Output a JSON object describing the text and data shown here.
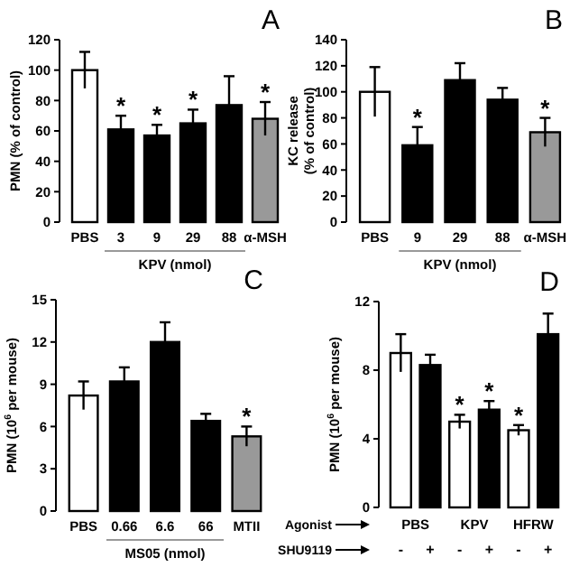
{
  "chart_data": [
    {
      "type": "bar",
      "title": "A",
      "xlabel": "KPV (nmol)",
      "ylabel": "PMN (% of control)",
      "categories": [
        "PBS",
        "3",
        "9",
        "29",
        "88",
        "α-MSH"
      ],
      "values": [
        100,
        61,
        57,
        65,
        77,
        68
      ],
      "errors": [
        12,
        9,
        7,
        9,
        19,
        11
      ],
      "colors": [
        "#ffffff",
        "#000000",
        "#000000",
        "#000000",
        "#000000",
        "#999999"
      ],
      "value_labels": [
        null,
        "*",
        "*",
        "*",
        null,
        "*"
      ],
      "ylim": [
        0,
        120
      ],
      "yticks": [
        0,
        20,
        40,
        60,
        80,
        100,
        120
      ]
    },
    {
      "type": "bar",
      "title": "B",
      "xlabel": "KPV (nmol)",
      "ylabel": "KC release (% of control)",
      "categories": [
        "PBS",
        "9",
        "29",
        "88",
        "α-MSH"
      ],
      "values": [
        100,
        59,
        109,
        94,
        69
      ],
      "errors": [
        19,
        14,
        13,
        9,
        11
      ],
      "colors": [
        "#ffffff",
        "#000000",
        "#000000",
        "#000000",
        "#999999"
      ],
      "value_labels": [
        null,
        "*",
        null,
        null,
        "*"
      ],
      "ylim": [
        0,
        140
      ],
      "yticks": [
        0,
        20,
        40,
        60,
        80,
        100,
        120,
        140
      ]
    },
    {
      "type": "bar",
      "title": "C",
      "xlabel": "MS05 (nmol)",
      "ylabel": "PMN (10$^{6}$ per mouse)",
      "categories": [
        "PBS",
        "0.66",
        "6.6",
        "66",
        "MTII"
      ],
      "values": [
        8.2,
        9.2,
        12.0,
        6.4,
        5.3
      ],
      "errors": [
        1.0,
        1.0,
        1.4,
        0.5,
        0.7
      ],
      "colors": [
        "#ffffff",
        "#000000",
        "#000000",
        "#000000",
        "#999999"
      ],
      "value_labels": [
        null,
        null,
        null,
        null,
        "*"
      ],
      "ylim": [
        0,
        15
      ],
      "yticks": [
        0,
        3,
        6,
        9,
        12,
        15
      ]
    },
    {
      "type": "bar",
      "title": "D",
      "ylabel": "PMN (10$^{6}$ per mouse)",
      "categories": [
        "-",
        "+",
        "-",
        "+",
        "-",
        "+"
      ],
      "values": [
        9.0,
        8.3,
        5.0,
        5.7,
        4.5,
        10.1
      ],
      "errors": [
        1.1,
        0.6,
        0.4,
        0.5,
        0.3,
        1.2
      ],
      "colors": [
        "#ffffff",
        "#000000",
        "#ffffff",
        "#000000",
        "#ffffff",
        "#000000"
      ],
      "value_labels": [
        null,
        null,
        "*",
        "*",
        "*",
        null
      ],
      "annotations": [
        "Agonist",
        "PBS",
        "KPV",
        "HFRW",
        "SHU9119"
      ],
      "ylim": [
        0,
        12
      ],
      "yticks": [
        0,
        4,
        8,
        12
      ]
    }
  ]
}
